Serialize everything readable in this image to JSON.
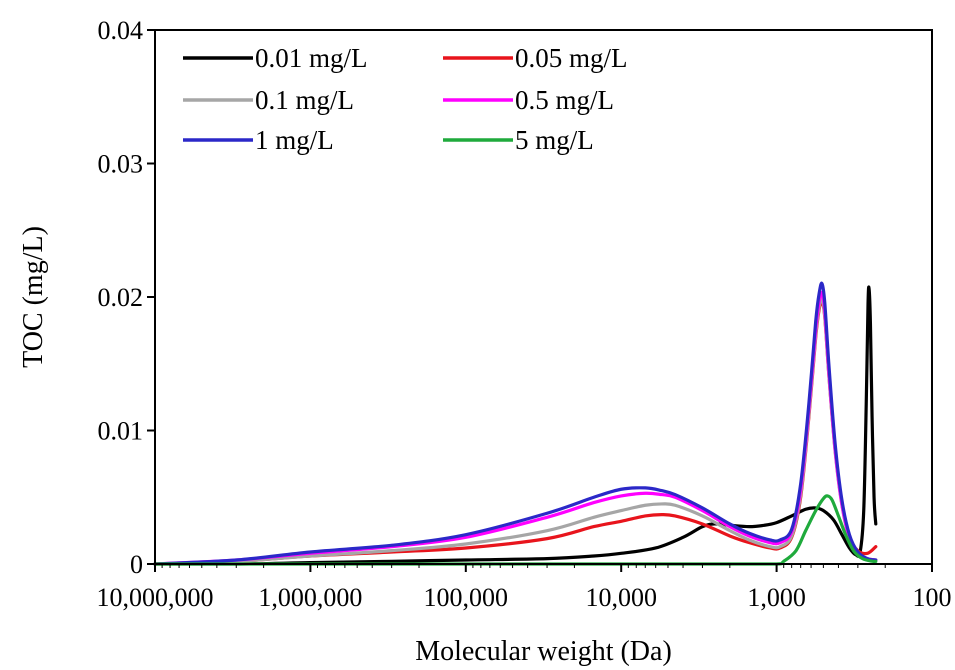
{
  "chart_data": {
    "type": "line",
    "title": "",
    "xlabel": "Molecular weight (Da)",
    "ylabel": "TOC (mg/L)",
    "x_scale": "log",
    "x_reversed": true,
    "xlim": [
      10000000,
      100
    ],
    "ylim": [
      0,
      0.04
    ],
    "grid": false,
    "legend_position": "top-left",
    "xticks": [
      {
        "value": 10000000,
        "label": "10,000,000"
      },
      {
        "value": 1000000,
        "label": "1,000,000"
      },
      {
        "value": 100000,
        "label": "100,000"
      },
      {
        "value": 10000,
        "label": "10,000"
      },
      {
        "value": 1000,
        "label": "1,000"
      },
      {
        "value": 100,
        "label": "100"
      }
    ],
    "yticks": [
      {
        "value": 0,
        "label": "0"
      },
      {
        "value": 0.01,
        "label": "0.01"
      },
      {
        "value": 0.02,
        "label": "0.02"
      },
      {
        "value": 0.03,
        "label": "0.03"
      },
      {
        "value": 0.04,
        "label": "0.04"
      }
    ],
    "series": [
      {
        "name": "0.01 mg/L",
        "color": "#000000",
        "points": [
          [
            10000000,
            0
          ],
          [
            3000000,
            0
          ],
          [
            1000000,
            0.0001
          ],
          [
            300000,
            0.0002
          ],
          [
            100000,
            0.0003
          ],
          [
            30000,
            0.0004
          ],
          [
            15000,
            0.0006
          ],
          [
            10000,
            0.0008
          ],
          [
            6000,
            0.0012
          ],
          [
            4000,
            0.002
          ],
          [
            3000,
            0.0028
          ],
          [
            2500,
            0.003
          ],
          [
            2000,
            0.0029
          ],
          [
            1500,
            0.0028
          ],
          [
            1200,
            0.0029
          ],
          [
            1000,
            0.0031
          ],
          [
            800,
            0.0036
          ],
          [
            650,
            0.0041
          ],
          [
            560,
            0.0042
          ],
          [
            500,
            0.004
          ],
          [
            430,
            0.0033
          ],
          [
            380,
            0.0022
          ],
          [
            340,
            0.0012
          ],
          [
            310,
            0.0007
          ],
          [
            290,
            0.0009
          ],
          [
            275,
            0.004
          ],
          [
            265,
            0.012
          ],
          [
            258,
            0.0195
          ],
          [
            254,
            0.0206
          ],
          [
            249,
            0.018
          ],
          [
            243,
            0.011
          ],
          [
            236,
            0.005
          ],
          [
            230,
            0.003
          ]
        ]
      },
      {
        "name": "0.05 mg/L",
        "color": "#e8141c",
        "points": [
          [
            10000000,
            0
          ],
          [
            3000000,
            0.0002
          ],
          [
            1000000,
            0.0006
          ],
          [
            300000,
            0.0009
          ],
          [
            100000,
            0.0012
          ],
          [
            30000,
            0.0019
          ],
          [
            15000,
            0.0028
          ],
          [
            10000,
            0.0032
          ],
          [
            7000,
            0.0036
          ],
          [
            5500,
            0.0037
          ],
          [
            4500,
            0.0036
          ],
          [
            3000,
            0.003
          ],
          [
            2000,
            0.0021
          ],
          [
            1500,
            0.0016
          ],
          [
            1100,
            0.0012
          ],
          [
            950,
            0.0012
          ],
          [
            800,
            0.002
          ],
          [
            700,
            0.005
          ],
          [
            620,
            0.011
          ],
          [
            560,
            0.017
          ],
          [
            530,
            0.0192
          ],
          [
            510,
            0.0196
          ],
          [
            490,
            0.0185
          ],
          [
            460,
            0.014
          ],
          [
            420,
            0.0085
          ],
          [
            380,
            0.0045
          ],
          [
            340,
            0.002
          ],
          [
            300,
            0.001
          ],
          [
            260,
            0.0008
          ],
          [
            230,
            0.0013
          ]
        ]
      },
      {
        "name": "0.1 mg/L",
        "color": "#a6a6a6",
        "points": [
          [
            10000000,
            0
          ],
          [
            3000000,
            0.0002
          ],
          [
            1000000,
            0.0006
          ],
          [
            300000,
            0.001
          ],
          [
            100000,
            0.0015
          ],
          [
            30000,
            0.0025
          ],
          [
            15000,
            0.0035
          ],
          [
            10000,
            0.004
          ],
          [
            7000,
            0.0044
          ],
          [
            5500,
            0.0045
          ],
          [
            4500,
            0.0044
          ],
          [
            3000,
            0.0036
          ],
          [
            2000,
            0.0025
          ],
          [
            1500,
            0.0018
          ],
          [
            1100,
            0.0013
          ],
          [
            950,
            0.0013
          ],
          [
            800,
            0.0021
          ],
          [
            700,
            0.0052
          ],
          [
            620,
            0.0112
          ],
          [
            560,
            0.0172
          ],
          [
            530,
            0.0194
          ],
          [
            510,
            0.0198
          ],
          [
            490,
            0.0186
          ],
          [
            460,
            0.014
          ],
          [
            420,
            0.0084
          ],
          [
            380,
            0.0044
          ],
          [
            340,
            0.0019
          ],
          [
            300,
            0.0008
          ],
          [
            260,
            0.0004
          ],
          [
            230,
            0.0003
          ]
        ]
      },
      {
        "name": "0.5 mg/L",
        "color": "#ff00ff",
        "points": [
          [
            10000000,
            0
          ],
          [
            3000000,
            0.0003
          ],
          [
            1000000,
            0.0008
          ],
          [
            300000,
            0.0013
          ],
          [
            100000,
            0.002
          ],
          [
            30000,
            0.0035
          ],
          [
            15000,
            0.0046
          ],
          [
            10000,
            0.0051
          ],
          [
            7000,
            0.0053
          ],
          [
            5500,
            0.0052
          ],
          [
            4500,
            0.005
          ],
          [
            3000,
            0.004
          ],
          [
            2000,
            0.0028
          ],
          [
            1500,
            0.0021
          ],
          [
            1100,
            0.0016
          ],
          [
            950,
            0.0016
          ],
          [
            800,
            0.0024
          ],
          [
            700,
            0.0056
          ],
          [
            620,
            0.0116
          ],
          [
            560,
            0.0176
          ],
          [
            530,
            0.0198
          ],
          [
            510,
            0.0203
          ],
          [
            490,
            0.019
          ],
          [
            460,
            0.0143
          ],
          [
            420,
            0.0086
          ],
          [
            380,
            0.0045
          ],
          [
            340,
            0.002
          ],
          [
            300,
            0.0008
          ],
          [
            260,
            0.0004
          ],
          [
            230,
            0.0003
          ]
        ]
      },
      {
        "name": "1 mg/L",
        "color": "#2b28c8",
        "points": [
          [
            10000000,
            0
          ],
          [
            3000000,
            0.0003
          ],
          [
            1000000,
            0.0009
          ],
          [
            300000,
            0.0014
          ],
          [
            100000,
            0.0022
          ],
          [
            30000,
            0.0038
          ],
          [
            15000,
            0.005
          ],
          [
            10000,
            0.0056
          ],
          [
            7000,
            0.0057
          ],
          [
            5500,
            0.0055
          ],
          [
            4500,
            0.0052
          ],
          [
            3000,
            0.0042
          ],
          [
            2000,
            0.003
          ],
          [
            1500,
            0.0023
          ],
          [
            1100,
            0.0018
          ],
          [
            950,
            0.0018
          ],
          [
            800,
            0.0026
          ],
          [
            700,
            0.006
          ],
          [
            620,
            0.012
          ],
          [
            560,
            0.0182
          ],
          [
            530,
            0.0204
          ],
          [
            510,
            0.021
          ],
          [
            490,
            0.0196
          ],
          [
            460,
            0.0148
          ],
          [
            420,
            0.009
          ],
          [
            380,
            0.0048
          ],
          [
            340,
            0.0022
          ],
          [
            300,
            0.0009
          ],
          [
            260,
            0.0004
          ],
          [
            230,
            0.0003
          ]
        ]
      },
      {
        "name": "5 mg/L",
        "color": "#1faa3c",
        "points": [
          [
            10000000,
            0
          ],
          [
            1000000,
            0
          ],
          [
            100000,
            0
          ],
          [
            10000,
            0
          ],
          [
            2000,
            0
          ],
          [
            1000,
            0
          ],
          [
            900,
            0.0002
          ],
          [
            750,
            0.001
          ],
          [
            650,
            0.0025
          ],
          [
            560,
            0.004
          ],
          [
            500,
            0.0049
          ],
          [
            470,
            0.0051
          ],
          [
            440,
            0.0048
          ],
          [
            400,
            0.0036
          ],
          [
            360,
            0.0022
          ],
          [
            320,
            0.001
          ],
          [
            280,
            0.0004
          ],
          [
            240,
            0.0002
          ],
          [
            230,
            0.0002
          ]
        ]
      }
    ]
  }
}
